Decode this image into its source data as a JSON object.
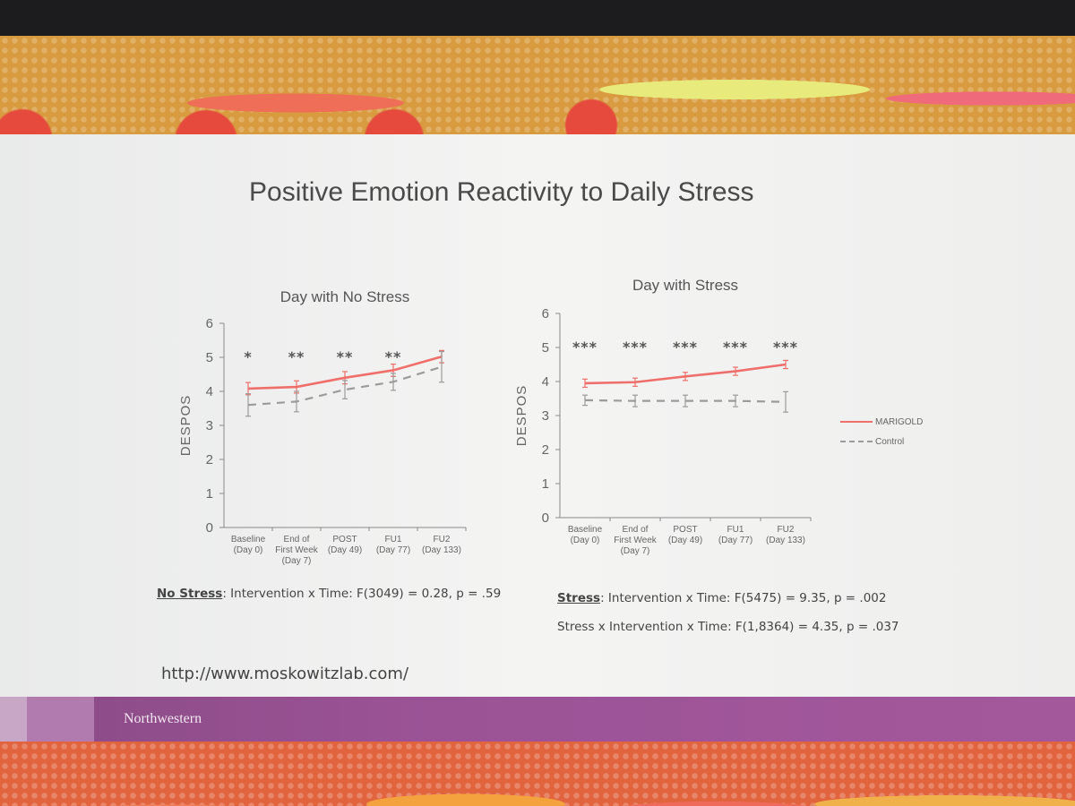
{
  "slide": {
    "title": "Positive Emotion Reactivity to Daily Stress",
    "url": "http://www.moskowitzlab.com/",
    "footer_logo": "Northwestern"
  },
  "colors": {
    "marigold": "#ef6f6a",
    "control": "#9b9b9b",
    "footer": "#9b5396"
  },
  "legend": [
    {
      "label": "MARIGOLD",
      "style": "solid"
    },
    {
      "label": "Control",
      "style": "dashed"
    }
  ],
  "stats": {
    "no_stress": {
      "label": "No Stress",
      "text": ": Intervention x Time: F(3049) = 0.28, p = .59"
    },
    "stress": {
      "label": "Stress",
      "text": ": Intervention x Time: F(5475) = 9.35, p = .002"
    },
    "stress_interaction": {
      "text": "Stress x Intervention x Time: F(1,8364) = 4.35, p = .037"
    }
  },
  "chart_data": [
    {
      "type": "line",
      "title": "Day with No Stress",
      "ylabel": "DESPOS",
      "xlabel": "",
      "ylim": [
        0,
        6
      ],
      "yticks": [
        "0",
        "1",
        "2",
        "3",
        "4",
        "5",
        "6"
      ],
      "categories": [
        [
          "Baseline",
          "(Day 0)"
        ],
        [
          "End of",
          "First Week",
          "(Day 7)"
        ],
        [
          "POST",
          "(Day 49)"
        ],
        [
          "FU1",
          "(Day 77)"
        ],
        [
          "FU2",
          "(Day 133)"
        ]
      ],
      "series": [
        {
          "name": "MARIGOLD",
          "values": [
            4.08,
            4.13,
            4.4,
            4.62,
            5.02
          ],
          "error": [
            0.18,
            0.18,
            0.18,
            0.18,
            0.18
          ]
        },
        {
          "name": "Control",
          "values": [
            3.6,
            3.7,
            4.05,
            4.28,
            4.72
          ],
          "error": [
            0.33,
            0.3,
            0.27,
            0.25,
            0.45
          ]
        }
      ],
      "significance": [
        "*",
        "**",
        "**",
        "**",
        ""
      ]
    },
    {
      "type": "line",
      "title": "Day with Stress",
      "ylabel": "DESPOS",
      "xlabel": "",
      "ylim": [
        0,
        6
      ],
      "yticks": [
        "0",
        "1",
        "2",
        "3",
        "4",
        "5",
        "6"
      ],
      "categories": [
        [
          "Baseline",
          "(Day 0)"
        ],
        [
          "End of",
          "First Week",
          "(Day 7)"
        ],
        [
          "POST",
          "(Day 49)"
        ],
        [
          "FU1",
          "(Day 77)"
        ],
        [
          "FU2",
          "(Day 133)"
        ]
      ],
      "series": [
        {
          "name": "MARIGOLD",
          "values": [
            3.95,
            3.98,
            4.15,
            4.3,
            4.5
          ],
          "error": [
            0.12,
            0.12,
            0.12,
            0.12,
            0.12
          ]
        },
        {
          "name": "Control",
          "values": [
            3.45,
            3.43,
            3.43,
            3.43,
            3.4
          ],
          "error": [
            0.15,
            0.17,
            0.17,
            0.17,
            0.3
          ]
        }
      ],
      "significance": [
        "***",
        "***",
        "***",
        "***",
        "***"
      ]
    }
  ]
}
